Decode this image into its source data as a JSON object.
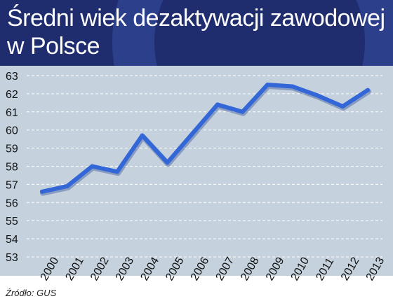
{
  "title": "Średni wiek dezaktywacji zawodowej w Polsce",
  "source": "Źródło: GUS",
  "colors": {
    "header": "#1f2d6e",
    "plot_bg": "#c5d2de",
    "line": "#3366d6",
    "grid": "#ffffff"
  },
  "chart_data": {
    "type": "line",
    "title": "Średni wiek dezaktywacji zawodowej w Polsce",
    "xlabel": "",
    "ylabel": "",
    "categories": [
      "2000",
      "2001",
      "2002",
      "2003",
      "2004",
      "2005",
      "2006",
      "2007",
      "2008",
      "2009",
      "2010",
      "2011",
      "2012",
      "2013"
    ],
    "series": [
      {
        "values": [
          56.6,
          56.9,
          58.0,
          57.7,
          59.7,
          58.2,
          59.8,
          61.4,
          61.0,
          62.5,
          62.4,
          61.9,
          61.3,
          62.2
        ]
      }
    ],
    "ylim": [
      53,
      63
    ],
    "yticks": [
      "53",
      "54",
      "55",
      "56",
      "57",
      "58",
      "59",
      "60",
      "61",
      "62",
      "63"
    ],
    "grid": "horizontal dashed",
    "legend": "none"
  }
}
